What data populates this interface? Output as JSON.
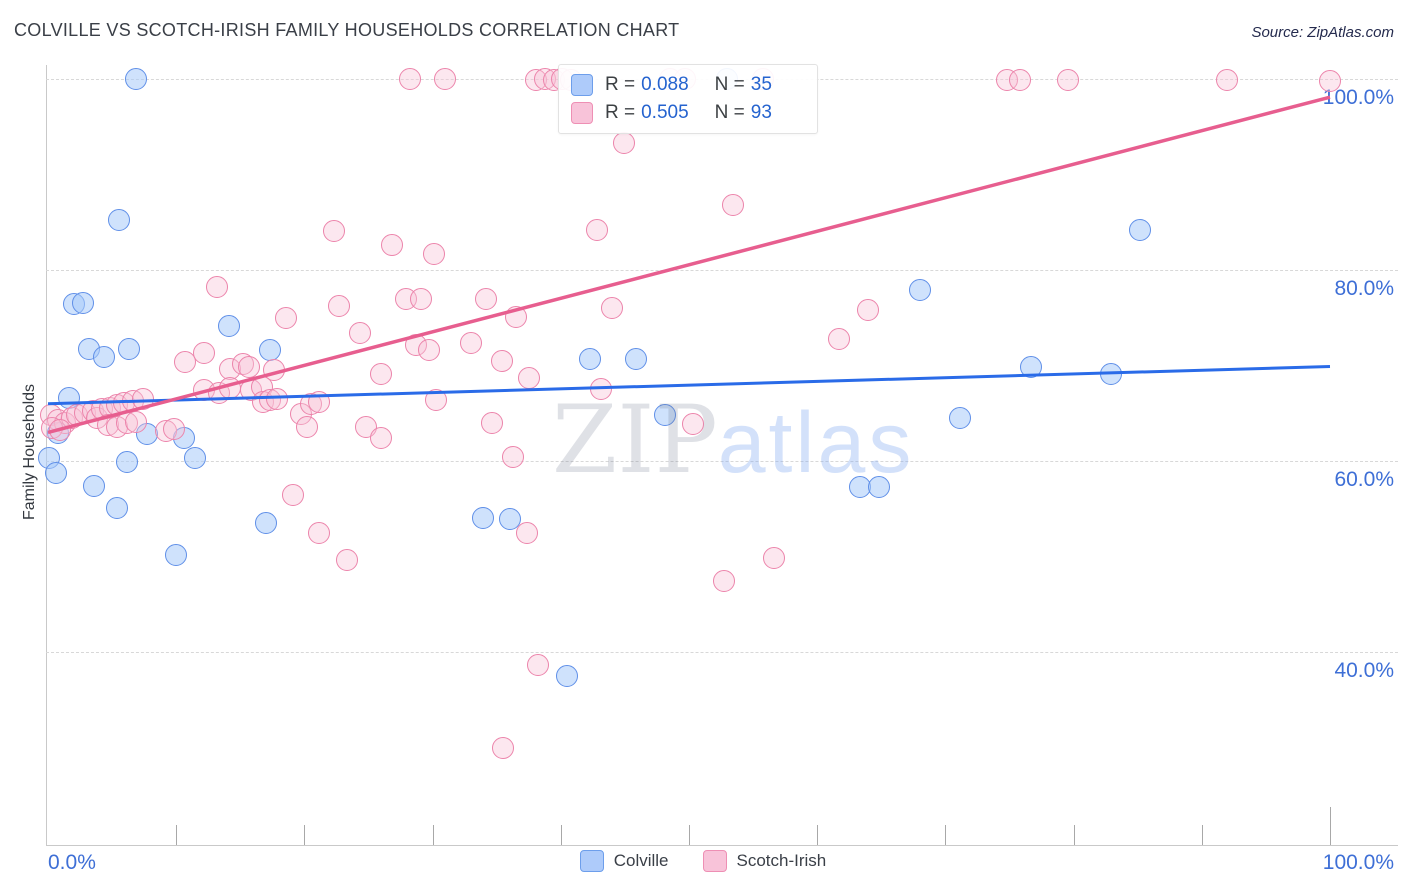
{
  "header": {
    "title": "COLVILLE VS SCOTCH-IRISH FAMILY HOUSEHOLDS CORRELATION CHART",
    "source": "Source: ZipAtlas.com"
  },
  "watermark": {
    "zip": "ZIP",
    "atlas": "atlas"
  },
  "axes": {
    "y_title": "Family Households",
    "y_ticks": [
      {
        "label": "100.0%",
        "value": 100
      },
      {
        "label": "80.0%",
        "value": 80
      },
      {
        "label": "60.0%",
        "value": 60
      },
      {
        "label": "40.0%",
        "value": 40
      }
    ],
    "x_left_label": "0.0%",
    "x_right_label": "100.0%",
    "x_tick_values": [
      10,
      20,
      30,
      40,
      50,
      60,
      70,
      80,
      90,
      100
    ]
  },
  "legend_box": {
    "rows": [
      {
        "series": "Colville",
        "r_label": "R =",
        "r_value": "0.088",
        "n_label": "N =",
        "n_value": "35",
        "swatch_fill": "#aecbfa",
        "swatch_border": "#6d9eeb"
      },
      {
        "series": "Scotch-Irish",
        "r_label": "R =",
        "r_value": "0.505",
        "n_label": "N =",
        "n_value": "93",
        "swatch_fill": "#f8c3d9",
        "swatch_border": "#ee8fb4"
      }
    ]
  },
  "bottom_legend": {
    "items": [
      {
        "label": "Colville",
        "fill": "#aecbfa",
        "border": "#6d9eeb"
      },
      {
        "label": "Scotch-Irish",
        "fill": "#f8c3d9",
        "border": "#ee8fb4"
      }
    ]
  },
  "chart_data": {
    "type": "scatter",
    "title": "COLVILLE VS SCOTCH-IRISH FAMILY HOUSEHOLDS CORRELATION CHART",
    "xlabel": "",
    "ylabel": "Family Households",
    "xlim": [
      0,
      100
    ],
    "ylim": [
      20,
      104
    ],
    "x_units": "percent",
    "y_units": "percent",
    "grid": "dashed horizontal at 40/60/80/100",
    "legend_position": "top-center and bottom-center",
    "y_gridlines": [
      100,
      80,
      60,
      40
    ],
    "series": [
      {
        "name": "Colville",
        "R": 0.088,
        "N": 35,
        "fill": "rgba(168,203,250,0.55)",
        "border": "#5f8fe8",
        "points": [
          [
            6.9,
            100
          ],
          [
            53,
            100
          ],
          [
            5.5,
            85.2
          ],
          [
            85.2,
            84.2
          ],
          [
            68,
            77.9
          ],
          [
            2,
            76.4
          ],
          [
            2.7,
            76.6
          ],
          [
            14.1,
            74.1
          ],
          [
            3.2,
            71.7
          ],
          [
            4.4,
            70.9
          ],
          [
            6.3,
            71.7
          ],
          [
            17.3,
            71.6
          ],
          [
            42.3,
            70.7
          ],
          [
            45.9,
            70.7
          ],
          [
            76.7,
            69.8
          ],
          [
            82.9,
            69.1
          ],
          [
            1.6,
            66.6
          ],
          [
            48.1,
            64.8
          ],
          [
            71.1,
            64.5
          ],
          [
            0.8,
            62.9
          ],
          [
            7.7,
            62.8
          ],
          [
            10.6,
            62.4
          ],
          [
            0.1,
            60.3
          ],
          [
            0.6,
            58.7
          ],
          [
            6.2,
            59.9
          ],
          [
            11.5,
            60.3
          ],
          [
            3.6,
            57.4
          ],
          [
            63.3,
            57.3
          ],
          [
            64.8,
            57.3
          ],
          [
            5.4,
            55.1
          ],
          [
            17,
            53.5
          ],
          [
            33.9,
            54
          ],
          [
            36,
            53.9
          ],
          [
            10,
            50.2
          ],
          [
            40.5,
            37.5
          ]
        ]
      },
      {
        "name": "Scotch-Irish",
        "R": 0.505,
        "N": 93,
        "fill": "rgba(247,195,215,0.4)",
        "border": "#ec84ab",
        "points": [
          [
            28.2,
            100
          ],
          [
            31,
            100
          ],
          [
            38.1,
            99.9
          ],
          [
            38.8,
            100
          ],
          [
            39.5,
            99.9
          ],
          [
            40.1,
            100
          ],
          [
            40.8,
            99.9
          ],
          [
            48.5,
            100
          ],
          [
            49.7,
            100
          ],
          [
            55.8,
            100
          ],
          [
            74.8,
            99.9
          ],
          [
            75.8,
            99.9
          ],
          [
            79.6,
            99.9
          ],
          [
            92,
            99.9
          ],
          [
            100,
            99.8
          ],
          [
            44.9,
            93.3
          ],
          [
            53.4,
            86.8
          ],
          [
            22.3,
            84.1
          ],
          [
            42.8,
            84.2
          ],
          [
            26.8,
            82.6
          ],
          [
            30.1,
            81.7
          ],
          [
            13.2,
            78.2
          ],
          [
            22.7,
            76.2
          ],
          [
            18.6,
            75
          ],
          [
            24.3,
            73.4
          ],
          [
            27.9,
            77
          ],
          [
            29.1,
            77
          ],
          [
            34.2,
            77
          ],
          [
            36.5,
            75.1
          ],
          [
            44,
            76
          ],
          [
            64,
            75.8
          ],
          [
            61.7,
            72.8
          ],
          [
            28.7,
            72.2
          ],
          [
            29.7,
            71.6
          ],
          [
            33,
            72.4
          ],
          [
            35.4,
            70.5
          ],
          [
            37.5,
            68.7
          ],
          [
            26,
            69.1
          ],
          [
            12.2,
            71.3
          ],
          [
            10.7,
            70.4
          ],
          [
            14.2,
            69.6
          ],
          [
            15.2,
            70.2
          ],
          [
            15.7,
            69.8
          ],
          [
            17.6,
            69.5
          ],
          [
            0.2,
            64.8
          ],
          [
            0.8,
            64.3
          ],
          [
            1.3,
            64
          ],
          [
            1.9,
            64.5
          ],
          [
            2.3,
            64.8
          ],
          [
            2.9,
            65
          ],
          [
            3.5,
            65.2
          ],
          [
            3.8,
            64.5
          ],
          [
            4.2,
            65.5
          ],
          [
            4.8,
            65.6
          ],
          [
            5.4,
            65.9
          ],
          [
            5.9,
            66.1
          ],
          [
            6.6,
            66.3
          ],
          [
            7.4,
            66.5
          ],
          [
            0.3,
            63.5
          ],
          [
            0.9,
            63.3
          ],
          [
            4.7,
            63.8
          ],
          [
            5.4,
            63.6
          ],
          [
            6.2,
            64
          ],
          [
            6.9,
            64.1
          ],
          [
            12.2,
            67.4
          ],
          [
            13.3,
            67.1
          ],
          [
            14.2,
            67.6
          ],
          [
            15.8,
            67.4
          ],
          [
            16.7,
            67.8
          ],
          [
            9.2,
            63.1
          ],
          [
            9.8,
            63.4
          ],
          [
            16.8,
            66.2
          ],
          [
            17.3,
            66.4
          ],
          [
            17.9,
            66.5
          ],
          [
            19.7,
            64.9
          ],
          [
            20.2,
            63.6
          ],
          [
            20.5,
            66
          ],
          [
            21.1,
            66.2
          ],
          [
            24.8,
            63.6
          ],
          [
            26,
            62.4
          ],
          [
            30.3,
            66.4
          ],
          [
            34.6,
            64
          ],
          [
            36.3,
            60.4
          ],
          [
            43.1,
            67.5
          ],
          [
            50.3,
            63.9
          ],
          [
            19.1,
            56.4
          ],
          [
            21.1,
            52.5
          ],
          [
            23.3,
            49.6
          ],
          [
            37.4,
            52.5
          ],
          [
            52.7,
            47.4
          ],
          [
            56.6,
            49.8
          ],
          [
            38.2,
            38.7
          ],
          [
            35.5,
            30
          ]
        ]
      }
    ],
    "trend_lines": [
      {
        "series": "Colville",
        "x1": 0,
        "y1": 66.0,
        "x2": 100,
        "y2": 69.9,
        "color": "#2a6be8",
        "width": 3
      },
      {
        "series": "Scotch-Irish",
        "x1": 0,
        "y1": 63.0,
        "x2": 100,
        "y2": 98.1,
        "color": "#e75e8f",
        "width": 3.5
      }
    ]
  }
}
